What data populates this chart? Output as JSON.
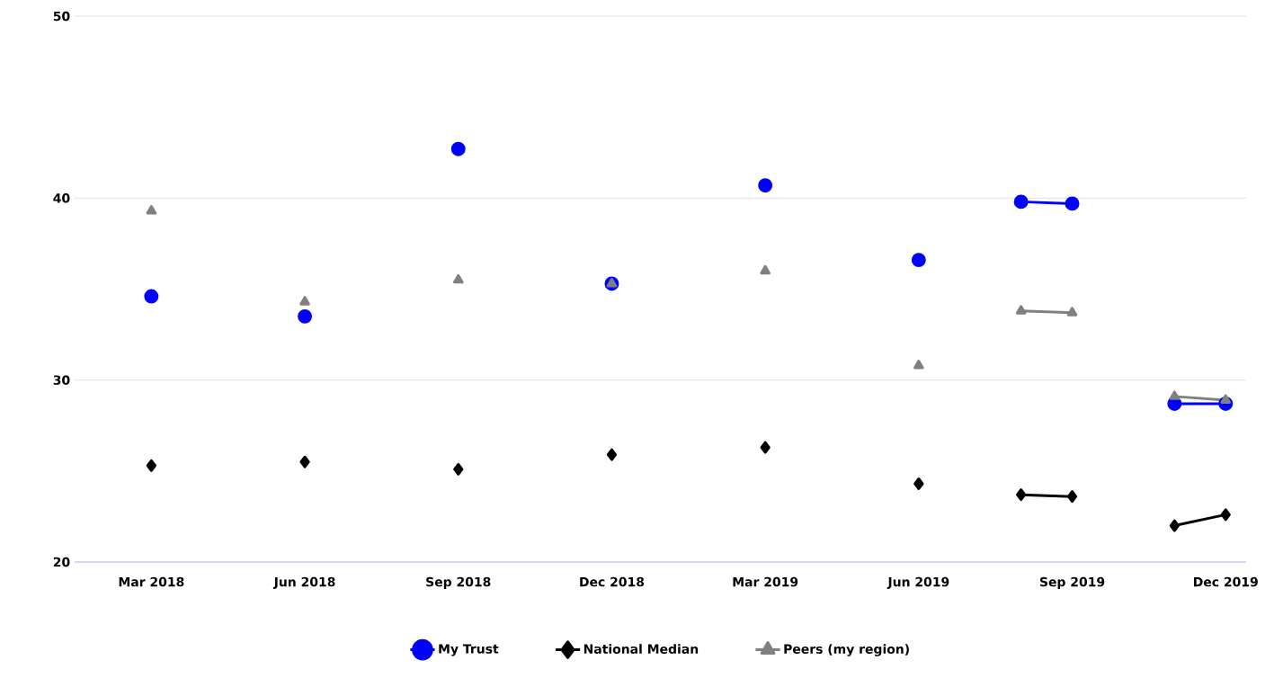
{
  "chart_data": {
    "type": "line",
    "x": [
      "2018-03",
      "2018-04",
      "2018-06",
      "2018-07",
      "2018-09",
      "2018-10",
      "2018-12",
      "2019-01",
      "2019-03",
      "2019-04",
      "2019-06",
      "2019-07",
      "2019-08",
      "2019-09",
      "2019-10",
      "2019-11",
      "2019-12"
    ],
    "series": [
      {
        "name": "My Trust",
        "color": "#0000ff",
        "marker": "circle",
        "values": [
          34.6,
          null,
          33.5,
          null,
          42.7,
          null,
          35.3,
          null,
          40.7,
          null,
          36.6,
          null,
          39.8,
          39.7,
          null,
          28.7,
          28.7
        ]
      },
      {
        "name": "National Median",
        "color": "#000000",
        "marker": "diamond",
        "values": [
          25.3,
          null,
          25.5,
          null,
          25.1,
          null,
          25.9,
          null,
          26.3,
          null,
          24.3,
          null,
          23.7,
          23.6,
          null,
          22.0,
          22.6
        ]
      },
      {
        "name": "Peers (my region)",
        "color": "#808080",
        "marker": "triangle",
        "values": [
          39.3,
          null,
          34.3,
          null,
          35.5,
          null,
          35.3,
          null,
          36.0,
          null,
          30.8,
          null,
          33.8,
          33.7,
          null,
          29.1,
          28.9
        ]
      }
    ],
    "xlim": [
      "2018-01-16",
      "2019-12-13"
    ],
    "xticks": [
      {
        "value": "2018-03",
        "label": "Mar 2018"
      },
      {
        "value": "2018-06",
        "label": "Jun 2018"
      },
      {
        "value": "2018-09",
        "label": "Sep 2018"
      },
      {
        "value": "2018-12",
        "label": "Dec 2018"
      },
      {
        "value": "2019-03",
        "label": "Mar 2019"
      },
      {
        "value": "2019-06",
        "label": "Jun 2019"
      },
      {
        "value": "2019-09",
        "label": "Sep 2019"
      },
      {
        "value": "2019-12",
        "label": "Dec 2019"
      }
    ],
    "ylim": [
      20,
      50
    ],
    "yticks": [
      20,
      30,
      40,
      50
    ],
    "grid": "y",
    "legend": "bottom",
    "line_style": "solid"
  }
}
